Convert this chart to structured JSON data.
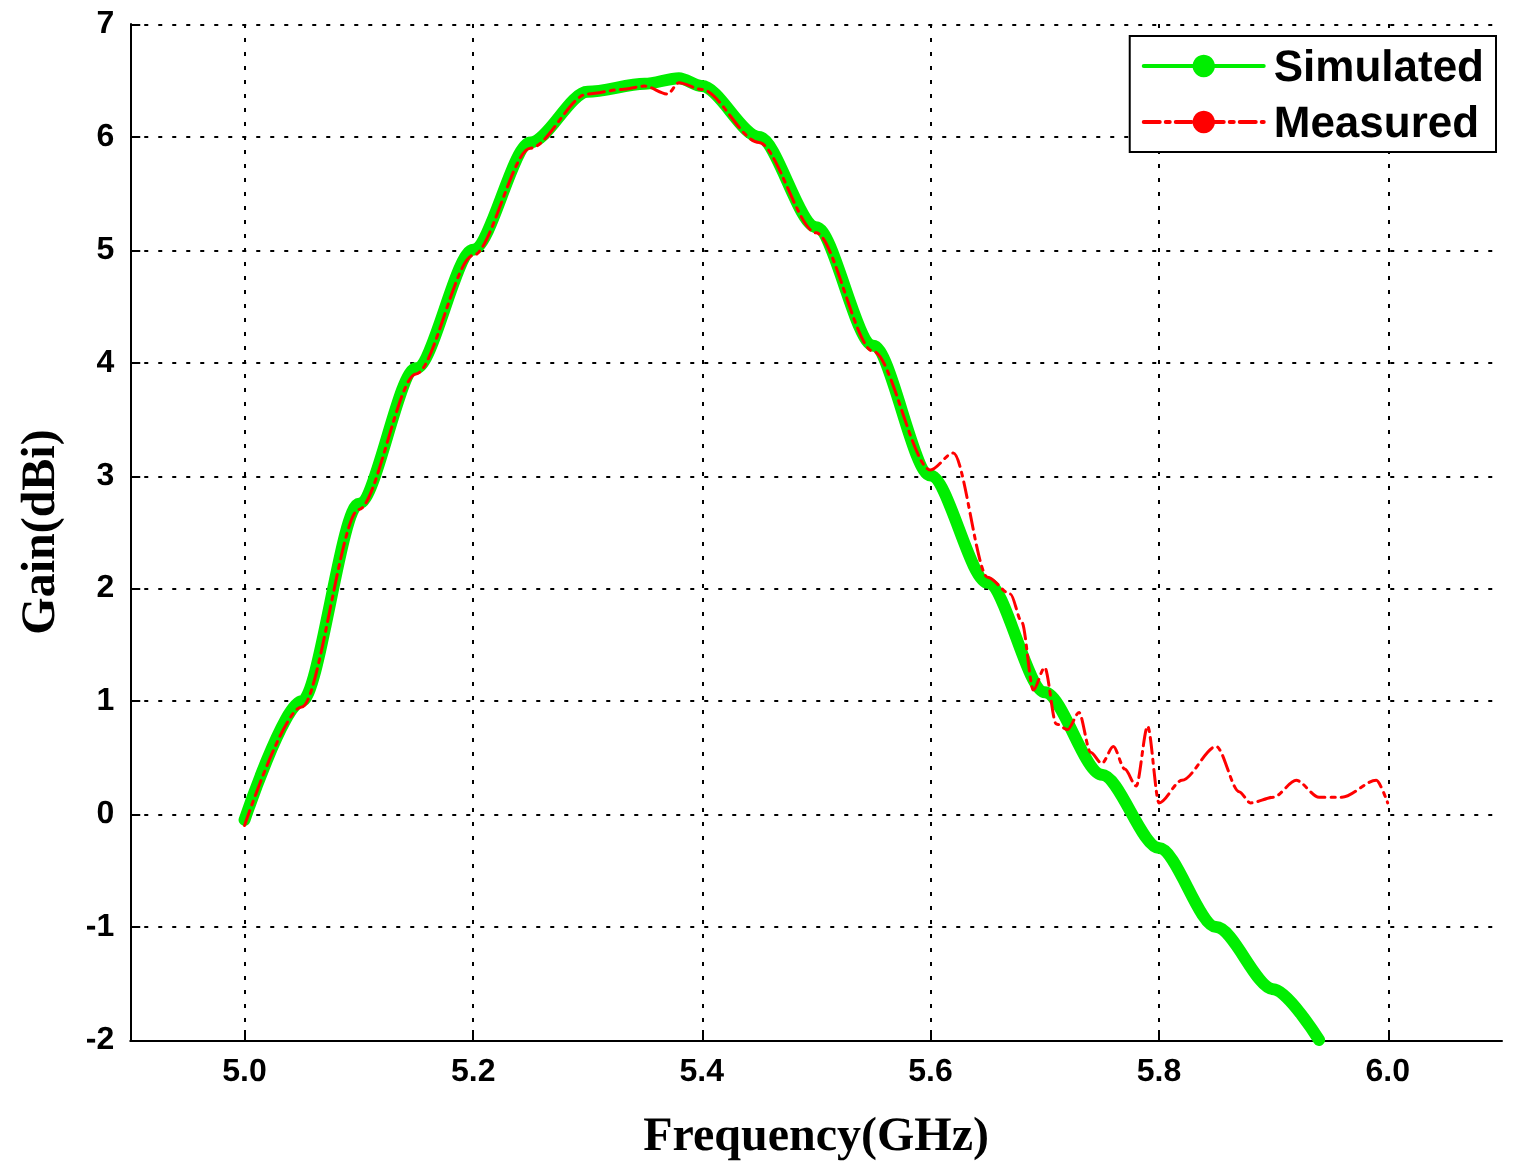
{
  "chart_data": {
    "type": "line",
    "xlabel": "Frequency(GHz)",
    "ylabel": "Gain(dBi)",
    "xlim": [
      4.9,
      6.1
    ],
    "xticks": [
      {
        "value": 5.0,
        "label": "5.0"
      },
      {
        "value": 5.2,
        "label": "5.2"
      },
      {
        "value": 5.4,
        "label": "5.4"
      },
      {
        "value": 5.6,
        "label": "5.6"
      },
      {
        "value": 5.8,
        "label": "5.8"
      },
      {
        "value": 6.0,
        "label": "6.0"
      }
    ],
    "ylim": [
      -2,
      7
    ],
    "yticks": [
      -2,
      -1,
      0,
      1,
      2,
      3,
      4,
      5,
      6,
      7
    ],
    "grid": true,
    "legend": "top right",
    "marker": "none",
    "series": [
      {
        "name": "Simulated",
        "color": "#00ee00",
        "line_style": "solid",
        "x": [
          5.0,
          5.05,
          5.1,
          5.15,
          5.2,
          5.25,
          5.3,
          5.35,
          5.38,
          5.4,
          5.45,
          5.5,
          5.55,
          5.6,
          5.65,
          5.7,
          5.75,
          5.8,
          5.85,
          5.9,
          5.94
        ],
        "values": [
          -0.05,
          1.0,
          2.75,
          3.95,
          5.0,
          5.95,
          6.4,
          6.47,
          6.52,
          6.45,
          6.0,
          5.2,
          4.15,
          3.0,
          2.05,
          1.08,
          0.35,
          -0.3,
          -1.0,
          -1.55,
          -2.0
        ]
      },
      {
        "name": "Measured",
        "color": "#ff0000",
        "line_style": "dashdot",
        "x": [
          5.0,
          5.05,
          5.1,
          5.15,
          5.2,
          5.25,
          5.3,
          5.33,
          5.35,
          5.37,
          5.38,
          5.4,
          5.45,
          5.5,
          5.55,
          5.6,
          5.62,
          5.65,
          5.67,
          5.68,
          5.69,
          5.7,
          5.71,
          5.72,
          5.73,
          5.74,
          5.75,
          5.76,
          5.77,
          5.78,
          5.79,
          5.8,
          5.82,
          5.85,
          5.87,
          5.88,
          5.9,
          5.92,
          5.94,
          5.96,
          5.99,
          6.0
        ],
        "values": [
          -0.1,
          0.95,
          2.7,
          3.9,
          4.95,
          5.9,
          6.38,
          6.42,
          6.45,
          6.38,
          6.48,
          6.42,
          5.95,
          5.15,
          4.1,
          3.05,
          3.2,
          2.1,
          1.95,
          1.7,
          1.1,
          1.3,
          0.8,
          0.75,
          0.9,
          0.55,
          0.45,
          0.6,
          0.4,
          0.25,
          0.78,
          0.1,
          0.3,
          0.6,
          0.2,
          0.1,
          0.15,
          0.3,
          0.15,
          0.15,
          0.3,
          0.1
        ]
      }
    ]
  }
}
